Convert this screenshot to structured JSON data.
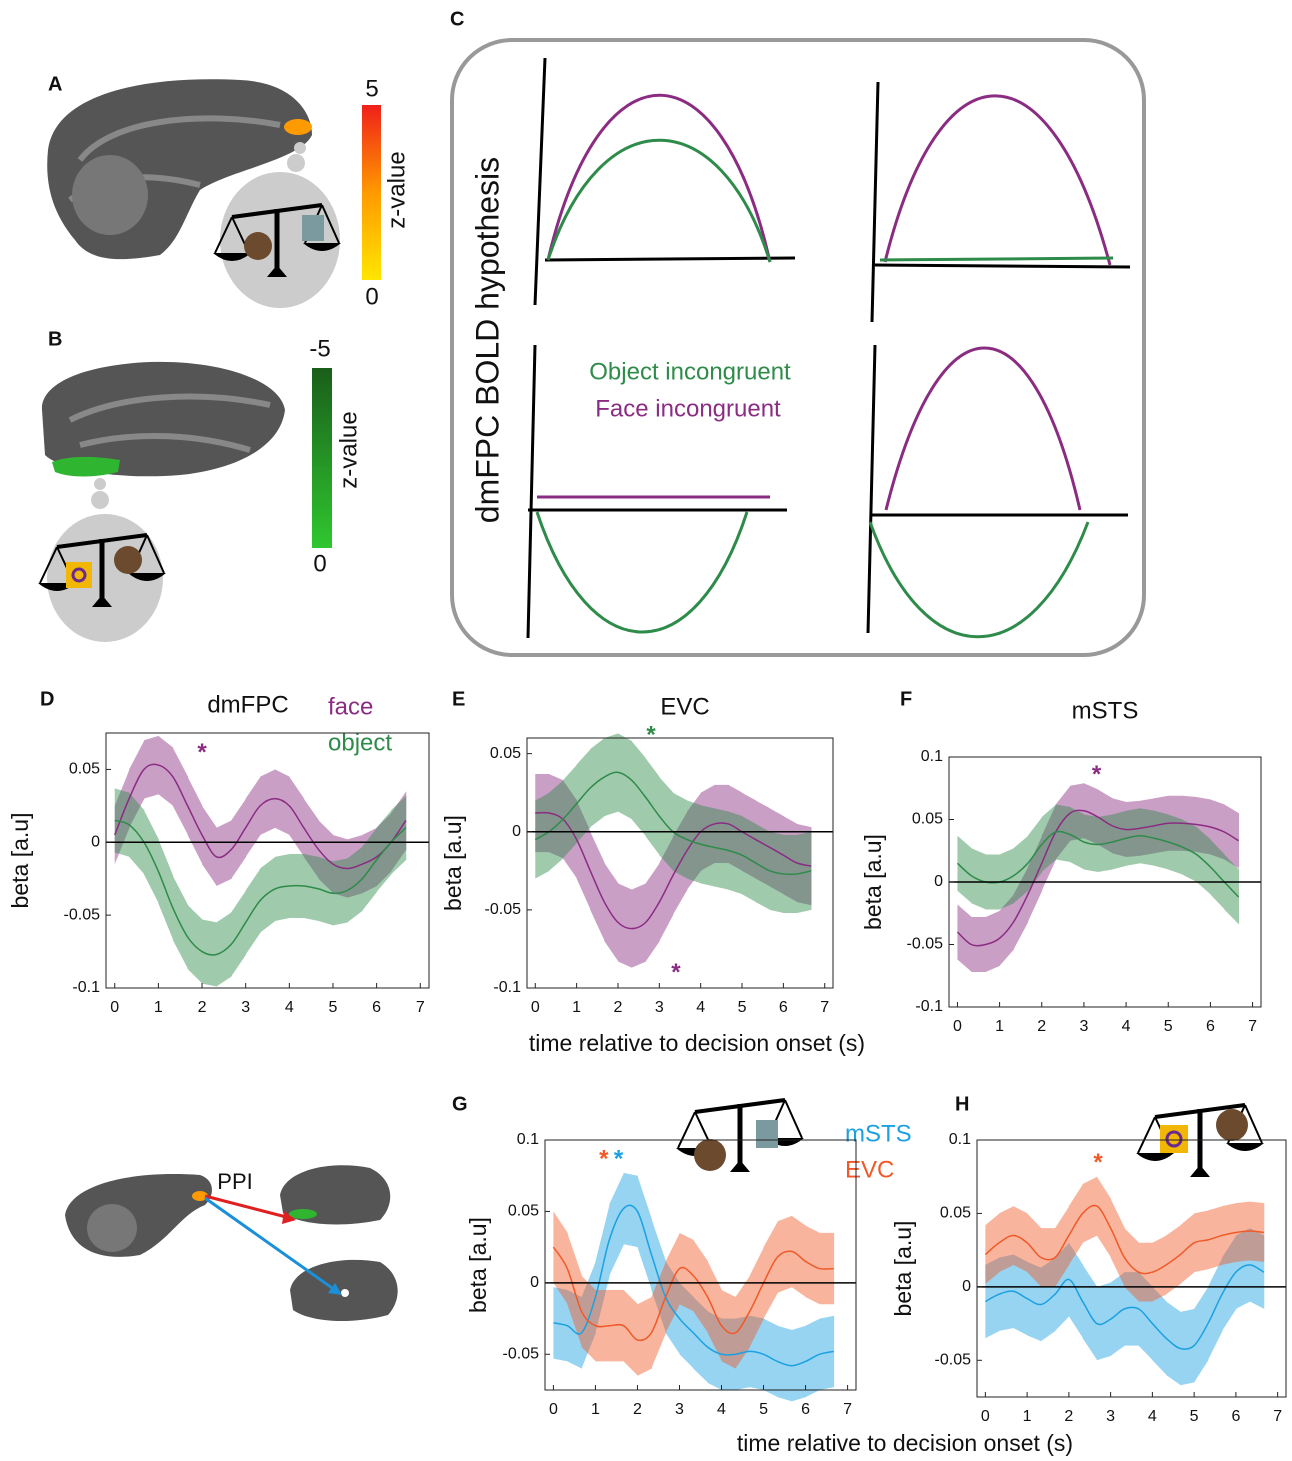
{
  "panel_a": {
    "label": "A",
    "colorbar_max": 5,
    "colorbar_min": 0,
    "colorbar_title": "z-value"
  },
  "panel_b": {
    "label": "B",
    "colorbar_max": -5,
    "colorbar_min": 0,
    "colorbar_title": "z-value"
  },
  "panel_c": {
    "label": "C",
    "title": "dmFPC BOLD hypothesis",
    "legend": [
      "Object incongruent",
      "Face incongruent"
    ]
  },
  "ppi": {
    "label": "PPI"
  },
  "chart_data": [
    {
      "type": "line",
      "panel": "D",
      "title": "dmFPC",
      "legend": true,
      "ylabel": "beta [a.u]",
      "x": [
        0,
        0.33,
        0.67,
        1,
        1.33,
        1.67,
        2,
        2.33,
        2.67,
        3,
        3.33,
        3.67,
        4,
        4.33,
        4.67,
        5,
        5.33,
        5.67,
        6,
        6.33,
        6.67
      ],
      "xlim": [
        -0.2,
        7.2
      ],
      "xticks": [
        0,
        1,
        2,
        3,
        4,
        5,
        6,
        7
      ],
      "ylim": [
        -0.1,
        0.075
      ],
      "yticks": [
        -0.1,
        -0.05,
        0,
        0.05
      ],
      "series": [
        {
          "name": "face",
          "color": "#8b2c83",
          "error": 0.02,
          "values": [
            0.005,
            0.03,
            0.05,
            0.053,
            0.045,
            0.025,
            0.005,
            -0.01,
            -0.005,
            0.01,
            0.025,
            0.03,
            0.025,
            0.01,
            -0.005,
            -0.015,
            -0.018,
            -0.015,
            -0.01,
            0,
            0.015
          ]
        },
        {
          "name": "object",
          "color": "#2e8b4a",
          "error": 0.022,
          "values": [
            0.015,
            0.012,
            0,
            -0.02,
            -0.045,
            -0.065,
            -0.075,
            -0.077,
            -0.07,
            -0.055,
            -0.04,
            -0.032,
            -0.03,
            -0.03,
            -0.032,
            -0.035,
            -0.033,
            -0.025,
            -0.012,
            0,
            0.01
          ]
        }
      ],
      "annotations": [
        {
          "text": "*",
          "x": 2,
          "y": 0.065,
          "color": "#8b2c83"
        }
      ]
    },
    {
      "type": "line",
      "panel": "E",
      "title": "EVC",
      "ylabel": "beta [a.u]",
      "xlabel": "time relative to decision onset (s)",
      "x": [
        0,
        0.33,
        0.67,
        1,
        1.33,
        1.67,
        2,
        2.33,
        2.67,
        3,
        3.33,
        3.67,
        4,
        4.33,
        4.67,
        5,
        5.33,
        5.67,
        6,
        6.33,
        6.67
      ],
      "xlim": [
        -0.2,
        7.2
      ],
      "xticks": [
        0,
        1,
        2,
        3,
        4,
        5,
        6,
        7
      ],
      "ylim": [
        -0.1,
        0.06
      ],
      "yticks": [
        -0.1,
        -0.05,
        0,
        0.05
      ],
      "series": [
        {
          "name": "face",
          "color": "#8b2c83",
          "error": 0.025,
          "values": [
            0.012,
            0.012,
            0.008,
            -0.005,
            -0.025,
            -0.045,
            -0.058,
            -0.062,
            -0.058,
            -0.045,
            -0.028,
            -0.012,
            0,
            0.005,
            0.005,
            0,
            -0.005,
            -0.01,
            -0.015,
            -0.02,
            -0.022
          ]
        },
        {
          "name": "object",
          "color": "#2e8b4a",
          "error": 0.025,
          "values": [
            -0.005,
            0,
            0.008,
            0.018,
            0.028,
            0.035,
            0.038,
            0.033,
            0.022,
            0.01,
            0,
            -0.005,
            -0.008,
            -0.01,
            -0.012,
            -0.015,
            -0.02,
            -0.025,
            -0.027,
            -0.027,
            -0.025
          ]
        }
      ],
      "annotations": [
        {
          "text": "*",
          "x": 2.8,
          "y": 0.065,
          "color": "#2e8b4a"
        },
        {
          "text": "*",
          "x": 3.4,
          "y": -0.087,
          "color": "#8b2c83"
        }
      ]
    },
    {
      "type": "line",
      "panel": "F",
      "title": "mSTS",
      "ylabel": "beta [a.u]",
      "x": [
        0,
        0.33,
        0.67,
        1,
        1.33,
        1.67,
        2,
        2.33,
        2.67,
        3,
        3.33,
        3.67,
        4,
        4.33,
        4.67,
        5,
        5.33,
        5.67,
        6,
        6.33,
        6.67
      ],
      "xlim": [
        -0.2,
        7.2
      ],
      "xticks": [
        0,
        1,
        2,
        3,
        4,
        5,
        6,
        7
      ],
      "ylim": [
        -0.1,
        0.1
      ],
      "yticks": [
        -0.1,
        -0.05,
        0,
        0.05,
        0.1
      ],
      "series": [
        {
          "name": "face",
          "color": "#8b2c83",
          "error": 0.022,
          "values": [
            -0.04,
            -0.05,
            -0.05,
            -0.045,
            -0.032,
            -0.01,
            0.015,
            0.04,
            0.055,
            0.057,
            0.052,
            0.045,
            0.042,
            0.043,
            0.045,
            0.047,
            0.047,
            0.046,
            0.044,
            0.04,
            0.033
          ]
        },
        {
          "name": "object",
          "color": "#2e8b4a",
          "error": 0.022,
          "values": [
            0.015,
            0.005,
            0,
            0,
            0.005,
            0.015,
            0.03,
            0.04,
            0.038,
            0.032,
            0.03,
            0.032,
            0.035,
            0.037,
            0.035,
            0.032,
            0.028,
            0.022,
            0.012,
            0,
            -0.012
          ]
        }
      ],
      "annotations": [
        {
          "text": "*",
          "x": 3.3,
          "y": 0.09,
          "color": "#8b2c83"
        }
      ]
    },
    {
      "type": "line",
      "panel": "G",
      "legend": true,
      "ylabel": "beta [a.u]",
      "xlabel": "time relative to decision onset (s)",
      "x": [
        0,
        0.33,
        0.67,
        1,
        1.33,
        1.67,
        2,
        2.33,
        2.67,
        3,
        3.33,
        3.67,
        4,
        4.33,
        4.67,
        5,
        5.33,
        5.67,
        6,
        6.33,
        6.67
      ],
      "xlim": [
        -0.2,
        7.2
      ],
      "xticks": [
        0,
        1,
        2,
        3,
        4,
        5,
        6,
        7
      ],
      "ylim": [
        -0.075,
        0.1
      ],
      "yticks": [
        -0.05,
        0,
        0.05,
        0.1
      ],
      "series": [
        {
          "name": "mSTS",
          "color": "#1ba1e2",
          "error": 0.025,
          "values": [
            -0.028,
            -0.03,
            -0.035,
            -0.01,
            0.03,
            0.052,
            0.05,
            0.02,
            -0.01,
            -0.025,
            -0.035,
            -0.045,
            -0.05,
            -0.05,
            -0.048,
            -0.05,
            -0.055,
            -0.058,
            -0.055,
            -0.05,
            -0.048
          ]
        },
        {
          "name": "EVC",
          "color": "#f05a28",
          "error": 0.025,
          "values": [
            0.025,
            0.01,
            -0.02,
            -0.03,
            -0.03,
            -0.03,
            -0.04,
            -0.035,
            -0.01,
            0.01,
            0.005,
            -0.01,
            -0.03,
            -0.035,
            -0.02,
            0,
            0.018,
            0.022,
            0.015,
            0.01,
            0.01
          ]
        }
      ],
      "annotations": [
        {
          "text": "*",
          "x": 1.2,
          "y": 0.09,
          "color": "#f05a28"
        },
        {
          "text": "*",
          "x": 1.55,
          "y": 0.09,
          "color": "#1ba1e2"
        }
      ]
    },
    {
      "type": "line",
      "panel": "H",
      "ylabel": "beta [a.u]",
      "x": [
        0,
        0.33,
        0.67,
        1,
        1.33,
        1.67,
        2,
        2.33,
        2.67,
        3,
        3.33,
        3.67,
        4,
        4.33,
        4.67,
        5,
        5.33,
        5.67,
        6,
        6.33,
        6.67
      ],
      "xlim": [
        -0.2,
        7.2
      ],
      "xticks": [
        0,
        1,
        2,
        3,
        4,
        5,
        6,
        7
      ],
      "ylim": [
        -0.075,
        0.1
      ],
      "yticks": [
        -0.05,
        0,
        0.05,
        0.1
      ],
      "series": [
        {
          "name": "mSTS",
          "color": "#1ba1e2",
          "error": 0.025,
          "values": [
            -0.01,
            -0.005,
            -0.003,
            -0.008,
            -0.012,
            -0.005,
            0.005,
            -0.01,
            -0.025,
            -0.022,
            -0.015,
            -0.015,
            -0.025,
            -0.035,
            -0.042,
            -0.04,
            -0.025,
            -0.005,
            0.01,
            0.015,
            0.01
          ]
        },
        {
          "name": "EVC",
          "color": "#f05a28",
          "error": 0.02,
          "values": [
            0.022,
            0.03,
            0.035,
            0.03,
            0.02,
            0.02,
            0.035,
            0.05,
            0.055,
            0.04,
            0.02,
            0.01,
            0.01,
            0.015,
            0.022,
            0.03,
            0.032,
            0.035,
            0.037,
            0.038,
            0.037
          ]
        }
      ],
      "annotations": [
        {
          "text": "*",
          "x": 2.7,
          "y": 0.088,
          "color": "#f05a28"
        }
      ]
    }
  ]
}
